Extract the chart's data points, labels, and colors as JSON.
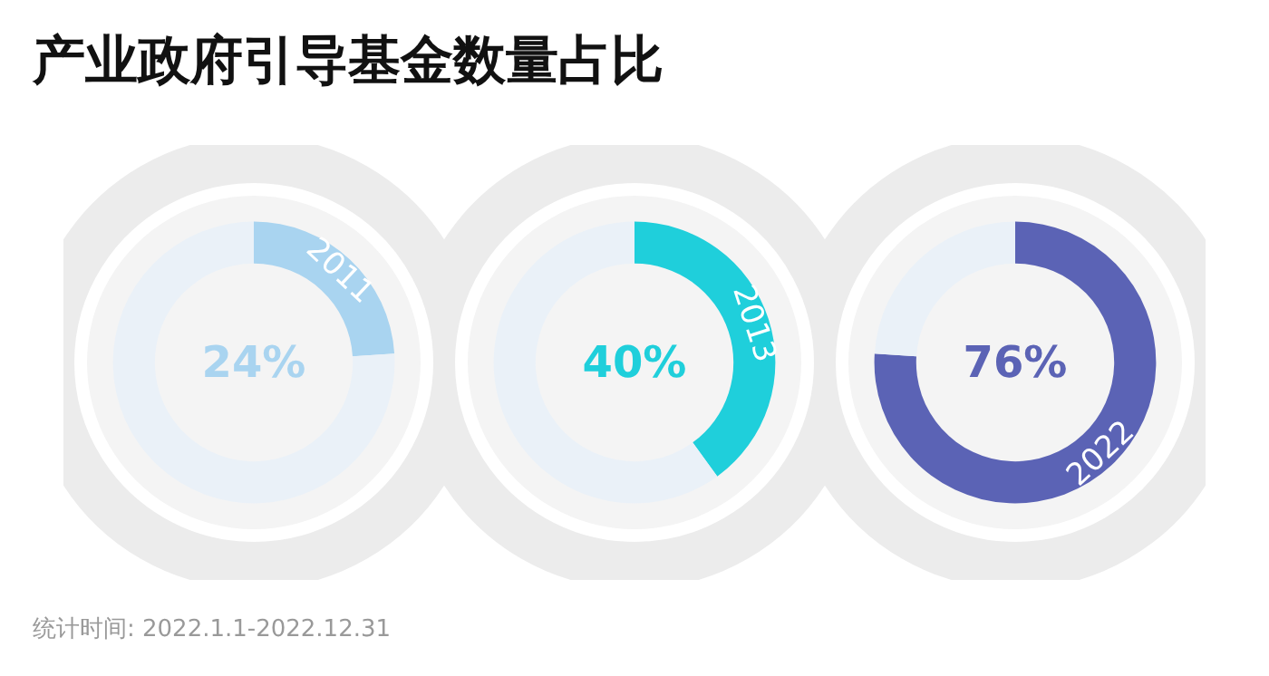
{
  "chart_data": [
    {
      "type": "donut",
      "title": "产业政府引导基金数量占比",
      "annotations": [
        "统计时间: 2022.1.1-2022.12.31"
      ],
      "categories": [
        "2011",
        null
      ],
      "values": [
        24,
        76
      ],
      "colors": [
        "#a9d4f0",
        "#eaf1f8"
      ],
      "value_labels": [
        "24%",
        null
      ]
    },
    {
      "type": "donut",
      "categories": [
        "2013",
        null
      ],
      "values": [
        40,
        60
      ],
      "colors": [
        "#1fcfdb",
        "#eaf1f8"
      ],
      "value_labels": [
        "40%",
        null
      ]
    },
    {
      "type": "donut",
      "categories": [
        "2022",
        null
      ],
      "values": [
        76,
        24
      ],
      "colors": [
        "#5b63b5",
        "#eaf1f8"
      ],
      "value_labels": [
        "76%",
        null
      ]
    }
  ]
}
